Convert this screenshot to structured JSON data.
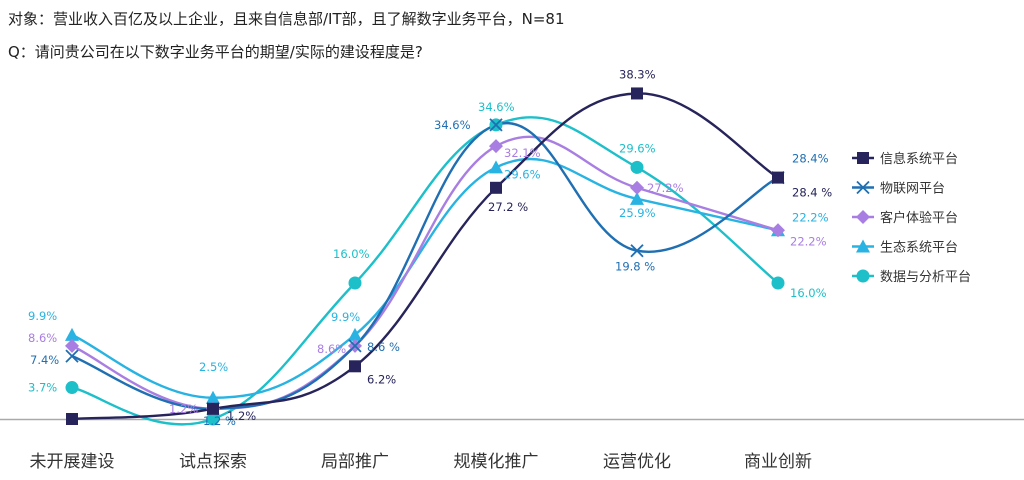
{
  "header": {
    "line1": "对象：营业收入百亿及以上企业，且来自信息部/IT部，且了解数字业务平台，N=81",
    "line2": "Q：请问贵公司在以下数字业务平台的期望/实际的建设程度是?"
  },
  "colors": {
    "信息系统平台": "#26245a",
    "物联网平台": "#1f6fb2",
    "客户体验平台": "#a97ee3",
    "生态系统平台": "#28b3e2",
    "数据与分析平台": "#1dbfc9"
  },
  "chart_data": {
    "type": "line",
    "categories": [
      "未开展建设",
      "试点探索",
      "局部推广",
      "规模化推广",
      "运营优化",
      "商业创新"
    ],
    "ylim": [
      0,
      40
    ],
    "grid": false,
    "legend_position": "right",
    "series": [
      {
        "name": "信息系统平台",
        "marker": "square",
        "values": [
          0.0,
          1.2,
          6.2,
          27.2,
          38.3,
          28.4
        ],
        "labels": [
          "",
          "1.2%",
          "6.2%",
          "27.2 %",
          "38.3%",
          "28.4 %"
        ]
      },
      {
        "name": "物联网平台",
        "marker": "x",
        "values": [
          7.4,
          1.2,
          8.6,
          34.6,
          19.8,
          28.4
        ],
        "labels": [
          "7.4%",
          "1.2 %",
          "8.6 %",
          "34.6%",
          "19.8 %",
          "28.4%"
        ]
      },
      {
        "name": "客户体验平台",
        "marker": "diamond",
        "values": [
          8.6,
          1.2,
          8.6,
          32.1,
          27.2,
          22.2
        ],
        "labels": [
          "8.6%",
          "1.2%",
          "8.6%",
          "32.1%",
          "27.2%",
          "22.2%"
        ]
      },
      {
        "name": "生态系统平台",
        "marker": "triangle",
        "values": [
          9.9,
          2.5,
          9.9,
          29.6,
          25.9,
          22.2
        ],
        "labels": [
          "9.9%",
          "2.5%",
          "9.9%",
          "29.6%",
          "25.9%",
          "22.2%"
        ]
      },
      {
        "name": "数据与分析平台",
        "marker": "circle",
        "values": [
          3.7,
          0.0,
          16.0,
          34.6,
          29.6,
          16.0
        ],
        "labels": [
          "3.7%",
          "",
          "16.0%",
          "34.6%",
          "29.6%",
          "16.0%"
        ]
      }
    ]
  }
}
